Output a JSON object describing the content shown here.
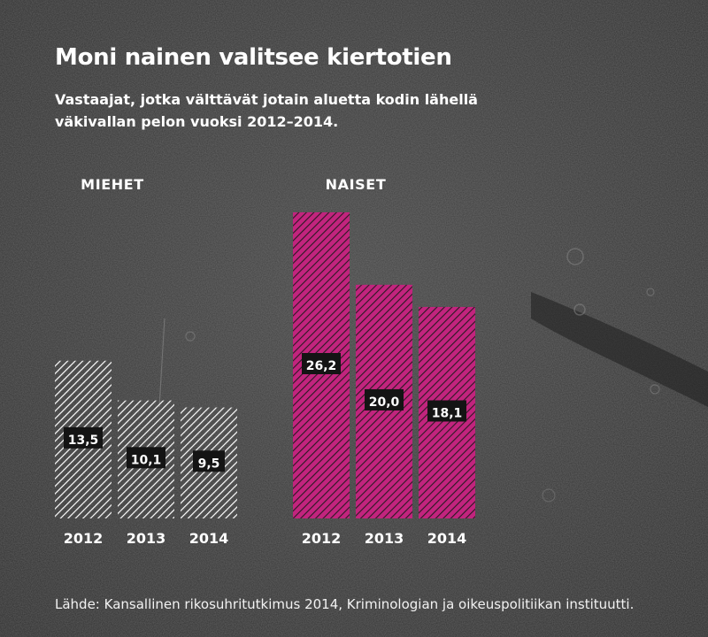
{
  "title": "Moni nainen valitsee kiertotien",
  "subtitle": "Vastaajat, jotka välttävät jotain aluetta kodin lähellä väkivallan pelon vuoksi 2012–2014.",
  "source": "Lähde: Kansallinen rikosuhritutkimus 2014, Kriminologian ja oikeuspolitiikan instituutti.",
  "colors": {
    "men_stripe": "#ffffff",
    "women_fill": "#c2247e",
    "women_stripe": "#2a1a22",
    "label_bg": "#141414",
    "background": "#3a3a3a"
  },
  "chart_data": {
    "type": "bar",
    "groups": [
      {
        "name": "MIEHET",
        "categories": [
          "2012",
          "2013",
          "2014"
        ],
        "values": [
          13.5,
          10.1,
          9.5
        ],
        "labels": [
          "13,5",
          "10,1",
          "9,5"
        ]
      },
      {
        "name": "NAISET",
        "categories": [
          "2012",
          "2013",
          "2014"
        ],
        "values": [
          26.2,
          20.0,
          18.1
        ],
        "labels": [
          "26,2",
          "20,0",
          "18,1"
        ]
      }
    ],
    "ylim": [
      0,
      26.2
    ],
    "grid": false,
    "axes_visible": false
  }
}
